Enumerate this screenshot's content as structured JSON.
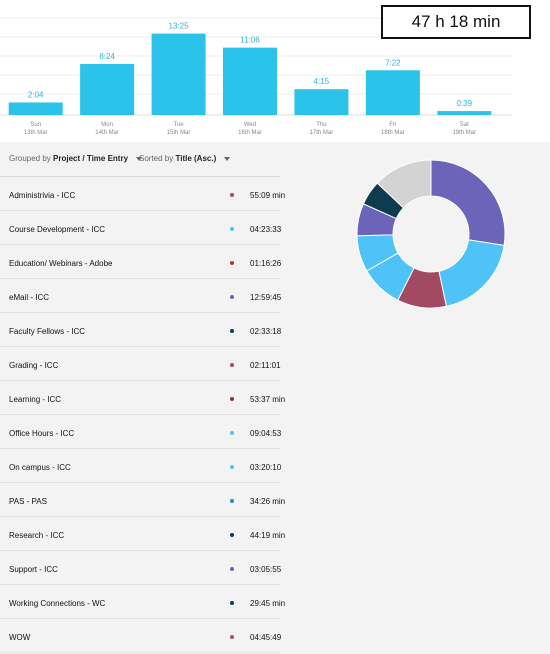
{
  "total": "47 h 18 min",
  "chart_data": {
    "type": "bar",
    "categories": [
      "Sun",
      "Mon",
      "Tue",
      "Wed",
      "Thu",
      "Fri",
      "Sat"
    ],
    "dates": [
      "13th Mar",
      "14th Mar",
      "15th Mar",
      "16th Mar",
      "17th Mar",
      "18th Mar",
      "19th Mar"
    ],
    "value_labels": [
      "2:04",
      "8:24",
      "13:25",
      "11:06",
      "4:15",
      "7:22",
      "0:39"
    ],
    "values": [
      2.07,
      8.4,
      13.42,
      11.1,
      4.25,
      7.37,
      0.65
    ],
    "bar_color": "#2bc3ea",
    "label_color": "#29b3e0",
    "grid": true,
    "ylim": [
      0,
      14.5
    ]
  },
  "controls": {
    "grouped_prefix": "Grouped by",
    "grouped_value": "Project / Time Entry",
    "sorted_prefix": "Sorted by",
    "sorted_value": "Title (Asc.)"
  },
  "entries": [
    {
      "title": "Administrivia - ICC",
      "duration": "55:09 min",
      "color": "#a24a61"
    },
    {
      "title": "Course Development - ICC",
      "duration": "04:23:33",
      "color": "#4fc3f7"
    },
    {
      "title": "Education/ Webinars - Adobe",
      "duration": "01:16:26",
      "color": "#a63a3a"
    },
    {
      "title": "eMail - ICC",
      "duration": "12:59:45",
      "color": "#6b64b8"
    },
    {
      "title": "Faculty Fellows - ICC",
      "duration": "02:33:18",
      "color": "#0d3b4f"
    },
    {
      "title": "Grading - ICC",
      "duration": "02:11:01",
      "color": "#a24a61"
    },
    {
      "title": "Learning - ICC",
      "duration": "53:37 min",
      "color": "#8b3a2a"
    },
    {
      "title": "Office Hours - ICC",
      "duration": "09:04:53",
      "color": "#4fc3f7"
    },
    {
      "title": "On campus - ICC",
      "duration": "03:20:10",
      "color": "#4fc3f7"
    },
    {
      "title": "PAS - PAS",
      "duration": "34:26 min",
      "color": "#2a8fb8"
    },
    {
      "title": "Research - ICC",
      "duration": "44:19 min",
      "color": "#0d3b4f"
    },
    {
      "title": "Support - ICC",
      "duration": "03:05:55",
      "color": "#6b64b8"
    },
    {
      "title": "Working Connections - WC",
      "duration": "29:45 min",
      "color": "#0d3b4f"
    },
    {
      "title": "WOW",
      "duration": "04:45:49",
      "color": "#a24a61"
    }
  ],
  "donut_data": {
    "type": "pie",
    "values": [
      12.99,
      9.08,
      5.08,
      4.39,
      3.76,
      3.33,
      2.56,
      6.11
    ],
    "colors": [
      "#6b64b8",
      "#4fc3f7",
      "#a24a61",
      "#4fc3f7",
      "#4fc3f7",
      "#6b64b8",
      "#0d3b4f",
      "#d3d3d3"
    ]
  }
}
